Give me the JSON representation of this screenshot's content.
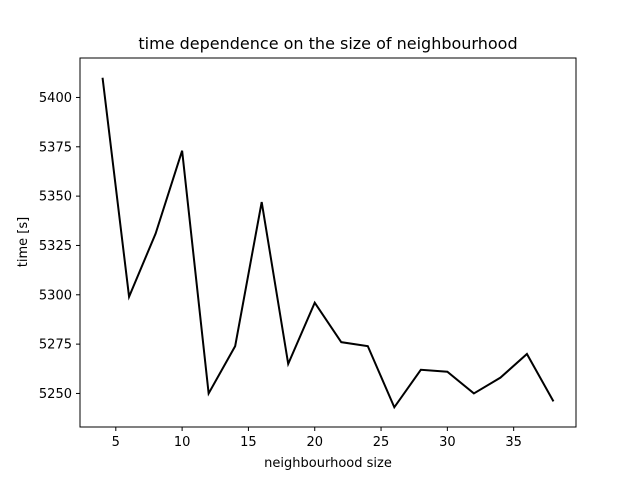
{
  "chart_data": {
    "type": "line",
    "title": "time dependence on the size of neighbourhood",
    "xlabel": "neighbourhood size",
    "ylabel": "time [s]",
    "xlim": [
      2.3,
      39.7
    ],
    "ylim": [
      5233,
      5420
    ],
    "xticks": [
      5,
      10,
      15,
      20,
      25,
      30,
      35
    ],
    "yticks": [
      5250,
      5275,
      5300,
      5325,
      5350,
      5375,
      5400
    ],
    "grid": false,
    "line_color": "#000000",
    "series": [
      {
        "x": [
          4,
          6,
          8,
          10,
          12,
          14,
          16,
          18,
          20,
          22,
          24,
          26,
          28,
          30,
          32,
          34,
          36,
          38
        ],
        "y": [
          5410,
          5299,
          5331,
          5373,
          5250,
          5274,
          5347,
          5265,
          5296,
          5276,
          5274,
          5243,
          5262,
          5261,
          5250,
          5258,
          5270,
          5246
        ]
      }
    ]
  }
}
